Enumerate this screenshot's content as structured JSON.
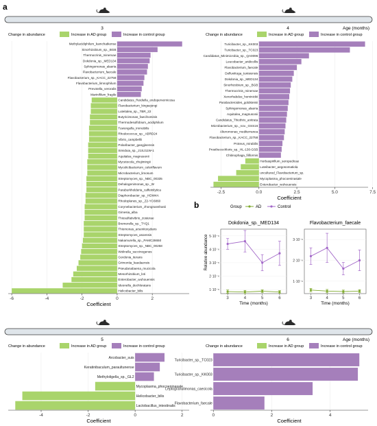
{
  "panel_labels": {
    "a": "a",
    "b": "b"
  },
  "colors": {
    "ad": "#a9d46b",
    "control": "#a57fbb",
    "timeline_bar": "#dfe5ea",
    "ad_line": "#7faa2e",
    "control_line": "#a267c8",
    "panel_bg": "#ffffff"
  },
  "icons": [
    "mouse-icon"
  ],
  "timeline_axis_label": "Age (months)",
  "legend": {
    "title": "Change in abundance",
    "ad_label": "Increase in AD group",
    "control_label": "Increase in control group"
  },
  "chart_data": [
    {
      "type": "bar",
      "orientation": "horizontal",
      "age_months": "3",
      "xlabel": "Coefficient",
      "xlim": [
        -6.2,
        4.1
      ],
      "xticks": [
        -6,
        -4,
        -2,
        0,
        2
      ],
      "categories": [
        "Methylacidiphilum_kamchatkense",
        "Sinorhizobium_sp._BGB",
        "Thermocrinis_minervae",
        "Dokdonia_sp._MED134",
        "Sphingomonas_alaeria",
        "Flavobacterium_faecale",
        "Flavobacterium_sp._KACC_22758",
        "Flavobacterium_limnophilum",
        "Prevotella_veroralis",
        "Marinifilum_fragile",
        "Candidatus_Reidiella_endopervernicosa",
        "Flavobacterium_kingsejongi",
        "Luteitalea_sp._TBR_22",
        "Butyricimonas_faecihominis",
        "Thermodesulfobium_acidiphilum",
        "Tuwongella_immobilis",
        "Rhodococcus_sp._ABRD24",
        "Vibrio_campbellii",
        "Polaribacter_gangjinensis",
        "Simiduia_sp._21SJ11W-1",
        "Aquitalea_magnusonii",
        "Mycetocola_zhujimingii",
        "Mycolicibacterium_celeriflavum",
        "Microbacterium_limosum",
        "Streptomyces_sp._NBC_00335",
        "Dehalogenimonas_sp._W",
        "Paraburkholderia_caffeinilytica",
        "Diaphorobacter_sp._HDW4A",
        "Rhodoplanes_sp._Z2-YC6860",
        "Corynebacterium_zhongnanshanii",
        "Gimesia_alba",
        "Thiosulfativibrio_zosterae",
        "Bremerella_sp._TYQ1",
        "Thiomonas_arsenitoxydans",
        "Streptomyces_asoensis",
        "Nakamurella_sp._PAMC28650",
        "Streptomyces_sp._NBC_00258",
        "Wolinella_succinogenes",
        "Gordonia_iterans",
        "Grimontia_kaedaensis",
        "Pseudanabaena_mucicola",
        "Mesorhizobium_loti",
        "Enterobacter_wuhouensis",
        "Ideonella_dechloratans",
        "Helicobacter_bilis"
      ],
      "values": [
        3.7,
        2.3,
        1.9,
        1.85,
        1.75,
        1.7,
        1.55,
        1.5,
        1.4,
        1.35,
        -1.45,
        -1.5,
        -1.5,
        -1.55,
        -1.55,
        -1.6,
        -1.6,
        -1.6,
        -1.65,
        -1.65,
        -1.65,
        -1.7,
        -1.7,
        -1.7,
        -1.75,
        -1.75,
        -1.75,
        -1.8,
        -1.8,
        -1.85,
        -1.85,
        -1.85,
        -1.9,
        -1.9,
        -1.9,
        -1.95,
        -2.0,
        -2.05,
        -2.1,
        -2.2,
        -2.3,
        -2.5,
        -2.6,
        -3.1,
        -6.0
      ]
    },
    {
      "type": "bar",
      "orientation": "horizontal",
      "age_months": "4",
      "xlabel": "Coefficient",
      "xlim": [
        -3.2,
        7.2
      ],
      "xticks": [
        -2.5,
        0.0,
        2.5,
        5.0,
        7.5
      ],
      "tick_labels": [
        "-2.5",
        "0.0",
        "2.5",
        "5.0",
        "7.5"
      ],
      "categories": [
        "Turicibacter_sp._KK003",
        "Turicibacter_sp._TC023",
        "Candidatus_Minimicrobia_sp._QA0096",
        "Leucobacter_aridicollis",
        "Flavobacterium_faecale",
        "Defluviitoga_tunisiensis",
        "Dokdonia_sp._MED134",
        "Sinorhizobium_sp._BGB",
        "Thermocrinis_minervae",
        "Xenorhabdus_hominickii",
        "Parabacteroides_goldsteinii",
        "Sphingomonas_alaeria",
        "Aquitalea_magnusonii",
        "Candidatus_Thiothrix_anitrata",
        "Microbacterium_sp._nov._GSS16",
        "Alteromonas_mediterranea",
        "Flavobacterium_sp._KACC_22758",
        "Proteus_mirabilis",
        "Prosthecochloris_sp._HL-130-GSB",
        "Chitinophaga_filiformis",
        "Herbaspirillum_seropedicae",
        "Luteibacter_aegosomatiola",
        "uncultured_Flavobacterium_sp.",
        "Mycoplasma_phocoeninasale",
        "Enterobacter_wuhouensis"
      ],
      "values": [
        7.0,
        6.0,
        3.3,
        2.8,
        2.5,
        2.3,
        2.2,
        2.1,
        2.05,
        2.0,
        1.95,
        1.9,
        1.85,
        1.8,
        1.75,
        1.7,
        1.65,
        1.55,
        1.5,
        1.45,
        -0.9,
        -1.2,
        -1.5,
        -2.7,
        -3.0
      ]
    },
    {
      "type": "line",
      "title": "Dokdonia_sp._MED134",
      "xlabel": "Time (months)",
      "ylabel": "Relative abundance",
      "x": [
        3,
        4,
        5,
        6
      ],
      "xlim": [
        2.6,
        6.4
      ],
      "ylim": [
        7e-07,
        5.5e-06
      ],
      "yticks": [
        1e-06,
        2e-06,
        3e-06,
        4e-06,
        5e-06
      ],
      "ytick_labels": [
        "1·10⁻⁶",
        "2·10⁻⁶",
        "3·10⁻⁶",
        "4·10⁻⁶",
        "5·10⁻⁶"
      ],
      "series": [
        {
          "name": "AD",
          "values": [
            8.5e-07,
            8.2e-07,
            8.8e-07,
            8.2e-07
          ],
          "err": [
            1.2e-07,
            1.2e-07,
            1e-07,
            1e-07
          ]
        },
        {
          "name": "Control",
          "values": [
            4.4e-06,
            4.6e-06,
            3e-06,
            3.7e-06
          ],
          "err": [
            4e-07,
            8e-07,
            6e-07,
            9e-07
          ]
        }
      ]
    },
    {
      "type": "line",
      "title": "Flavobacterium_faecale",
      "xlabel": "Time (months)",
      "ylabel": "",
      "x": [
        3,
        4,
        5,
        6
      ],
      "xlim": [
        2.6,
        6.4
      ],
      "ylim": [
        4e-07,
        3.5e-06
      ],
      "yticks": [
        1e-06,
        2e-06,
        3e-06
      ],
      "ytick_labels": [
        "1·10⁻⁶",
        "2·10⁻⁶",
        "3·10⁻⁶"
      ],
      "series": [
        {
          "name": "AD",
          "values": [
            5.7e-07,
            5.2e-07,
            5e-07,
            5.2e-07
          ],
          "err": [
            8e-08,
            8e-08,
            7e-08,
            7e-08
          ]
        },
        {
          "name": "Control",
          "values": [
            2.2e-06,
            2.6e-06,
            1.6e-06,
            2e-06
          ],
          "err": [
            4e-07,
            7e-07,
            3e-07,
            5e-07
          ]
        }
      ]
    },
    {
      "type": "bar",
      "orientation": "horizontal",
      "age_months": "5",
      "xlabel": "Coefficient",
      "xlim": [
        -5.4,
        2.3
      ],
      "xticks": [
        -4,
        -2,
        0,
        2
      ],
      "categories": [
        "Arcobacter_suis",
        "Keratinibaculum_paraultunense",
        "Methyloligella_sp._GL2",
        "Mycoplasma_phocoeninasale",
        "Helicobacter_bilis",
        "Lactobacillus_intestinalis"
      ],
      "values": [
        1.25,
        1.05,
        0.8,
        -1.7,
        -4.8,
        -5.1
      ]
    },
    {
      "type": "bar",
      "orientation": "horizontal",
      "age_months": "6",
      "xlabel": "Coefficient",
      "xlim": [
        -0.1,
        5.3
      ],
      "xticks": [
        0,
        2,
        4
      ],
      "categories": [
        "Turicibacter_sp._TC023",
        "Turicibacter_sp._KK003",
        "Leptogranulimonas_caecicola",
        "Flavobacterium_faecale"
      ],
      "values": [
        5.0,
        4.95,
        3.4,
        1.75
      ]
    }
  ]
}
